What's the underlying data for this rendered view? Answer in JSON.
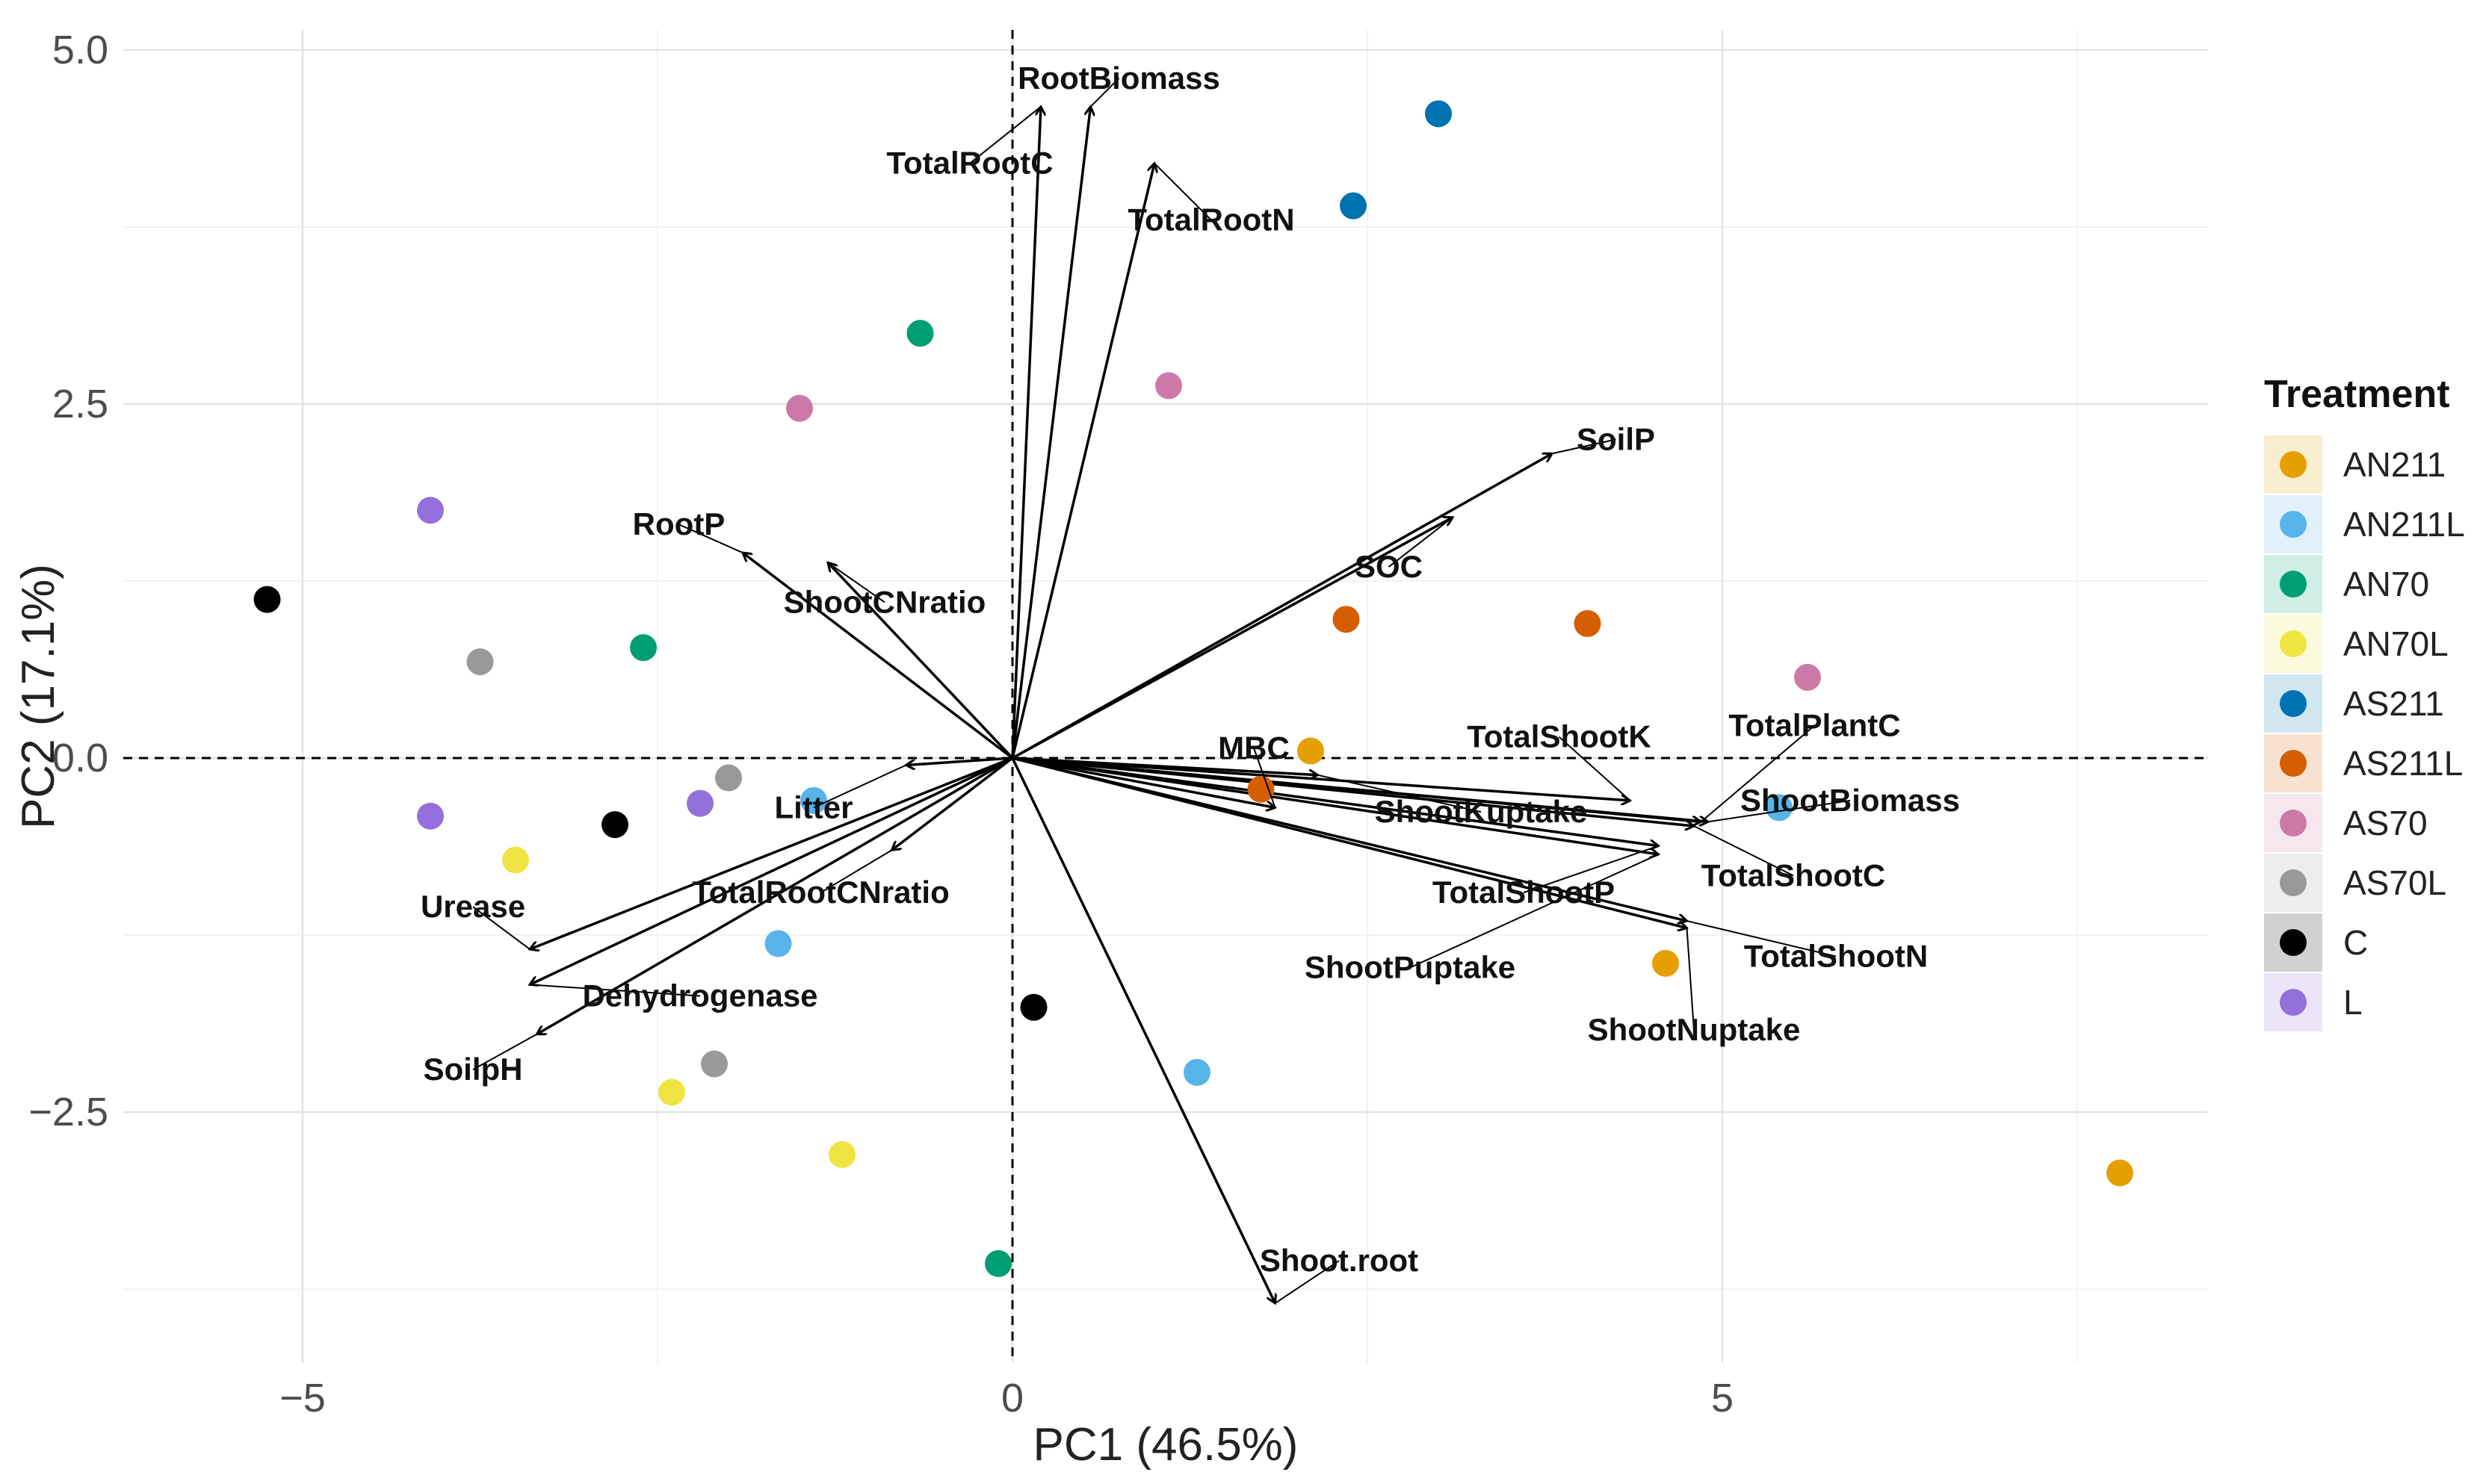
{
  "chart_data": {
    "type": "scatter",
    "subtype": "pca-biplot",
    "xlabel": "PC1 (46.5%)",
    "ylabel": "PC2 (17.1%)",
    "xlim": [
      -5.5,
      8.5
    ],
    "ylim": [
      -4.3,
      5.1
    ],
    "x_ticks": [
      {
        "value": -5,
        "label": "−5"
      },
      {
        "value": 0,
        "label": "0"
      },
      {
        "value": 5,
        "label": "5"
      }
    ],
    "y_ticks": [
      {
        "value": 5.0,
        "label": "5.0"
      },
      {
        "value": 2.5,
        "label": "2.5"
      },
      {
        "value": 0.0,
        "label": "0.0"
      },
      {
        "value": -2.5,
        "label": "−2.5"
      }
    ],
    "grid": true,
    "reference_lines": "dashed lines at x=0 and y=0",
    "legend": {
      "title": "Treatment",
      "placement": "right",
      "entries": [
        {
          "name": "AN211",
          "color": "#E69F00"
        },
        {
          "name": "AN211L",
          "color": "#56B4E9"
        },
        {
          "name": "AN70",
          "color": "#009E73"
        },
        {
          "name": "AN70L",
          "color": "#F0E442"
        },
        {
          "name": "AS211",
          "color": "#0072B2"
        },
        {
          "name": "AS211L",
          "color": "#D55E00"
        },
        {
          "name": "AS70",
          "color": "#CC79A7"
        },
        {
          "name": "AS70L",
          "color": "#999999"
        },
        {
          "name": "C",
          "color": "#000000"
        },
        {
          "name": "L",
          "color": "#9370DB"
        }
      ]
    },
    "points": [
      {
        "group": "AN211",
        "x": 2.1,
        "y": 0.05
      },
      {
        "group": "AN211",
        "x": 4.6,
        "y": -1.45
      },
      {
        "group": "AN211",
        "x": 7.8,
        "y": -2.93
      },
      {
        "group": "AN211L",
        "x": -1.4,
        "y": -0.3
      },
      {
        "group": "AN211L",
        "x": -1.65,
        "y": -1.31
      },
      {
        "group": "AN211L",
        "x": 1.3,
        "y": -2.22
      },
      {
        "group": "AN211L",
        "x": 5.4,
        "y": -0.35
      },
      {
        "group": "AN70",
        "x": -0.65,
        "y": 3.0
      },
      {
        "group": "AN70",
        "x": -2.6,
        "y": 0.78
      },
      {
        "group": "AN70",
        "x": -0.1,
        "y": -3.57
      },
      {
        "group": "AN70L",
        "x": -3.5,
        "y": -0.72
      },
      {
        "group": "AN70L",
        "x": -2.4,
        "y": -2.36
      },
      {
        "group": "AN70L",
        "x": -1.2,
        "y": -2.8
      },
      {
        "group": "AS211",
        "x": 3.0,
        "y": 4.55
      },
      {
        "group": "AS211",
        "x": 2.4,
        "y": 3.9
      },
      {
        "group": "AS211L",
        "x": 2.35,
        "y": 0.98
      },
      {
        "group": "AS211L",
        "x": 4.05,
        "y": 0.95
      },
      {
        "group": "AS211L",
        "x": 1.75,
        "y": -0.22
      },
      {
        "group": "AS70",
        "x": -1.5,
        "y": 2.47
      },
      {
        "group": "AS70",
        "x": 1.1,
        "y": 2.63
      },
      {
        "group": "AS70",
        "x": 5.6,
        "y": 0.57
      },
      {
        "group": "AS70L",
        "x": -3.75,
        "y": 0.68
      },
      {
        "group": "AS70L",
        "x": -2.0,
        "y": -0.14
      },
      {
        "group": "AS70L",
        "x": -2.1,
        "y": -2.16
      },
      {
        "group": "C",
        "x": -5.25,
        "y": 1.12
      },
      {
        "group": "C",
        "x": -2.8,
        "y": -0.47
      },
      {
        "group": "C",
        "x": 0.15,
        "y": -1.76
      },
      {
        "group": "L",
        "x": -4.1,
        "y": 1.75
      },
      {
        "group": "L",
        "x": -4.1,
        "y": -0.41
      },
      {
        "group": "L",
        "x": -2.2,
        "y": -0.32
      }
    ],
    "loadings": [
      {
        "name": "RootBiomass",
        "x": 0.55,
        "y": 4.6,
        "label_x": 0.75,
        "label_y": 4.8
      },
      {
        "name": "TotalRootC",
        "x": 0.2,
        "y": 4.6,
        "label_x": -0.3,
        "label_y": 4.2
      },
      {
        "name": "TotalRootN",
        "x": 1.0,
        "y": 4.2,
        "label_x": 1.4,
        "label_y": 3.8
      },
      {
        "name": "SoilP",
        "x": 3.8,
        "y": 2.15,
        "label_x": 4.25,
        "label_y": 2.25
      },
      {
        "name": "SOC",
        "x": 3.1,
        "y": 1.7,
        "label_x": 2.65,
        "label_y": 1.35
      },
      {
        "name": "RootP",
        "x": -1.9,
        "y": 1.45,
        "label_x": -2.35,
        "label_y": 1.65
      },
      {
        "name": "ShootCNratio",
        "x": -1.3,
        "y": 1.38,
        "label_x": -0.9,
        "label_y": 1.1
      },
      {
        "name": "Litter",
        "x": -0.75,
        "y": -0.05,
        "label_x": -1.4,
        "label_y": -0.35
      },
      {
        "name": "TotalRootCNratio",
        "x": -0.85,
        "y": -0.65,
        "label_x": -1.35,
        "label_y": -0.95
      },
      {
        "name": "Urease",
        "x": -3.4,
        "y": -1.35,
        "label_x": -3.8,
        "label_y": -1.05
      },
      {
        "name": "Dehydrogenase",
        "x": -3.4,
        "y": -1.6,
        "label_x": -2.2,
        "label_y": -1.68
      },
      {
        "name": "SoilpH",
        "x": -3.35,
        "y": -1.95,
        "label_x": -3.8,
        "label_y": -2.2
      },
      {
        "name": "Shoot.root",
        "x": 1.85,
        "y": -3.85,
        "label_x": 2.3,
        "label_y": -3.55
      },
      {
        "name": "MBC",
        "x": 1.85,
        "y": -0.35,
        "label_x": 1.7,
        "label_y": 0.07
      },
      {
        "name": "ShootKuptake",
        "x": 2.15,
        "y": -0.12,
        "label_x": 3.3,
        "label_y": -0.38
      },
      {
        "name": "TotalShootK",
        "x": 4.35,
        "y": -0.3,
        "label_x": 3.85,
        "label_y": 0.15
      },
      {
        "name": "TotalPlantC",
        "x": 4.85,
        "y": -0.45,
        "label_x": 5.65,
        "label_y": 0.23
      },
      {
        "name": "ShootBiomass",
        "x": 4.9,
        "y": -0.45,
        "label_x": 5.9,
        "label_y": -0.3
      },
      {
        "name": "TotalShootC",
        "x": 4.8,
        "y": -0.48,
        "label_x": 5.5,
        "label_y": -0.83
      },
      {
        "name": "TotalShootP",
        "x": 4.55,
        "y": -0.62,
        "label_x": 3.6,
        "label_y": -0.95
      },
      {
        "name": "ShootPuptake",
        "x": 4.55,
        "y": -0.68,
        "label_x": 2.8,
        "label_y": -1.48
      },
      {
        "name": "TotalShootN",
        "x": 4.75,
        "y": -1.15,
        "label_x": 5.8,
        "label_y": -1.4
      },
      {
        "name": "ShootNuptake",
        "x": 4.75,
        "y": -1.2,
        "label_x": 4.8,
        "label_y": -1.92
      }
    ]
  }
}
